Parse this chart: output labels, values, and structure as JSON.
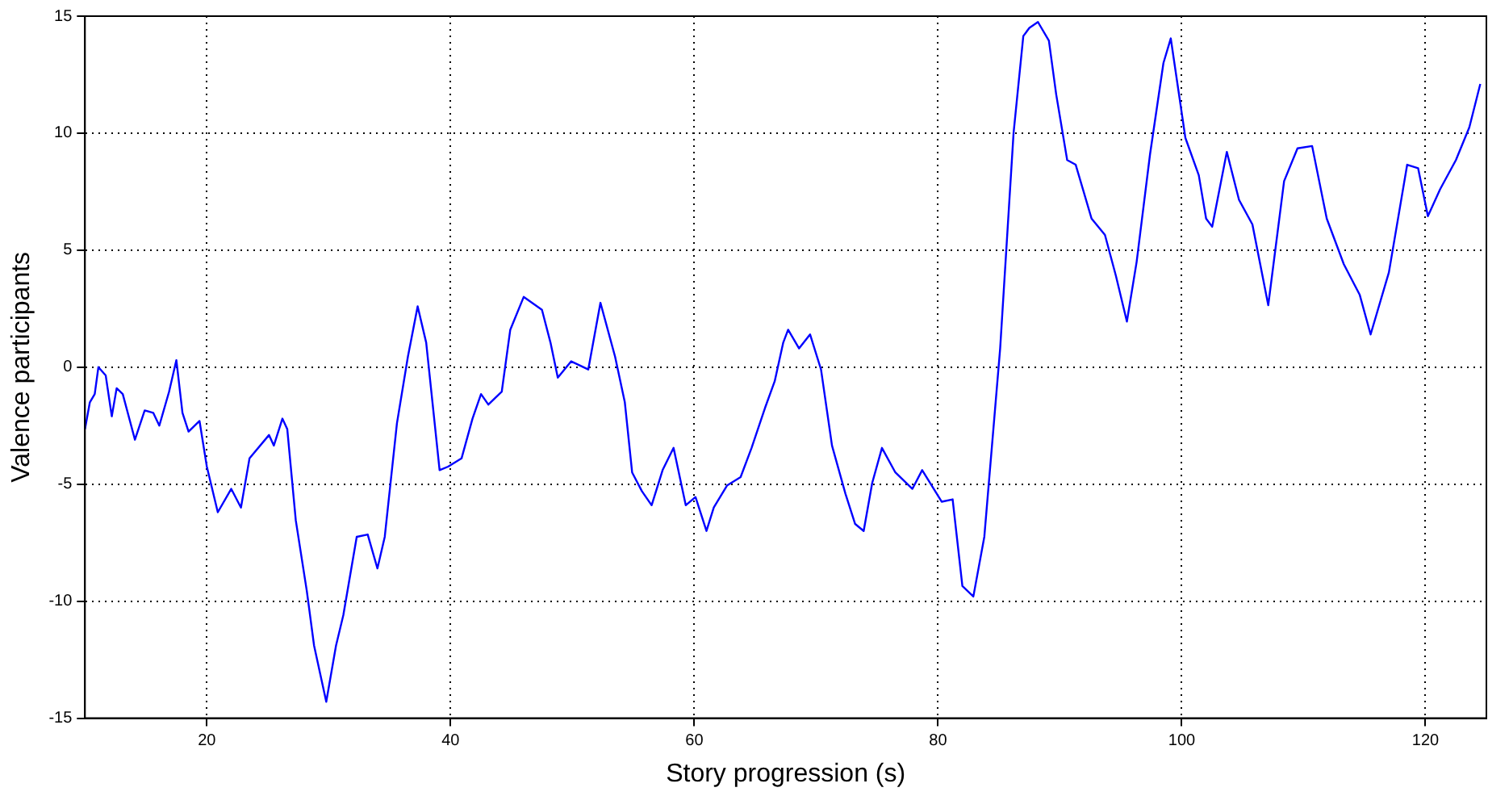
{
  "chart_data": {
    "type": "line",
    "xlabel": "Story progression (s)",
    "ylabel": "Valence participants",
    "x": [
      10.0,
      10.4,
      10.8,
      11.1,
      11.7,
      12.2,
      12.6,
      13.1,
      14.1,
      14.9,
      15.6,
      16.1,
      16.9,
      17.5,
      18.0,
      18.5,
      19.4,
      20.0,
      20.9,
      22.0,
      22.8,
      23.5,
      25.1,
      25.5,
      26.2,
      26.6,
      27.3,
      28.2,
      28.8,
      29.8,
      30.6,
      31.2,
      32.3,
      33.2,
      34.0,
      34.6,
      35.6,
      36.5,
      37.3,
      38.0,
      39.1,
      39.8,
      40.9,
      41.8,
      42.5,
      43.1,
      44.2,
      44.9,
      46.0,
      47.5,
      48.2,
      48.8,
      49.9,
      51.3,
      52.3,
      53.5,
      54.3,
      54.9,
      55.7,
      56.5,
      57.4,
      58.3,
      59.3,
      60.1,
      61.0,
      61.6,
      62.7,
      63.8,
      64.7,
      65.8,
      66.6,
      67.3,
      67.7,
      68.6,
      69.5,
      70.4,
      71.3,
      72.4,
      73.2,
      73.9,
      74.6,
      75.4,
      76.5,
      77.9,
      78.7,
      80.3,
      81.2,
      82.0,
      82.9,
      83.8,
      85.1,
      86.2,
      87.0,
      87.5,
      88.2,
      89.1,
      89.7,
      90.6,
      91.3,
      92.6,
      93.7,
      94.6,
      95.5,
      96.3,
      97.4,
      98.5,
      99.1,
      100.3,
      101.4,
      102.0,
      102.5,
      103.7,
      104.7,
      105.8,
      107.1,
      108.4,
      109.5,
      110.7,
      111.9,
      113.3,
      114.6,
      115.5,
      117.0,
      118.5,
      119.4,
      120.2,
      121.2,
      122.5,
      123.6,
      124.5
    ],
    "series": [
      {
        "color": "#0000ff",
        "values": [
          -2.65,
          -1.5,
          -1.15,
          0,
          -0.35,
          -2.1,
          -0.9,
          -1.15,
          -3.1,
          -1.85,
          -1.95,
          -2.5,
          -1.05,
          0.3,
          -1.95,
          -2.75,
          -2.3,
          -4.25,
          -6.2,
          -5.2,
          -6.0,
          -3.9,
          -2.9,
          -3.35,
          -2.2,
          -2.65,
          -6.55,
          -9.55,
          -11.9,
          -14.3,
          -11.9,
          -10.6,
          -7.25,
          -7.15,
          -8.6,
          -7.25,
          -2.4,
          0.45,
          2.6,
          1.05,
          -4.4,
          -4.25,
          -3.9,
          -2.2,
          -1.15,
          -1.6,
          -1.05,
          1.6,
          3.0,
          2.45,
          1.05,
          -0.45,
          0.25,
          -0.1,
          2.75,
          0.45,
          -1.5,
          -4.5,
          -5.3,
          -5.9,
          -4.4,
          -3.45,
          -5.9,
          -5.55,
          -7.0,
          -6.0,
          -5.05,
          -4.7,
          -3.45,
          -1.75,
          -0.6,
          1.05,
          1.6,
          0.8,
          1.4,
          -0.1,
          -3.35,
          -5.4,
          -6.7,
          -7.0,
          -4.95,
          -3.45,
          -4.5,
          -5.2,
          -4.4,
          -5.75,
          -5.65,
          -9.35,
          -9.8,
          -7.25,
          0.8,
          10.0,
          14.15,
          14.5,
          14.75,
          13.95,
          11.65,
          8.85,
          8.65,
          6.35,
          5.65,
          3.9,
          1.95,
          4.5,
          9.1,
          13.0,
          14.05,
          9.8,
          8.2,
          6.35,
          6.0,
          9.2,
          7.15,
          6.1,
          2.65,
          7.95,
          9.35,
          9.45,
          6.35,
          4.4,
          3.1,
          1.4,
          4.05,
          8.65,
          8.5,
          6.45,
          7.6,
          8.85,
          10.25,
          12.1
        ]
      }
    ],
    "xlim": [
      10,
      125
    ],
    "xticks": [
      20,
      40,
      60,
      80,
      100,
      120
    ],
    "ylim": [
      -15,
      15
    ],
    "yticks": [
      -15,
      -10,
      -5,
      0,
      5,
      10,
      15
    ],
    "grid": true,
    "legend": false,
    "marker": "none",
    "line_style": "solid"
  }
}
